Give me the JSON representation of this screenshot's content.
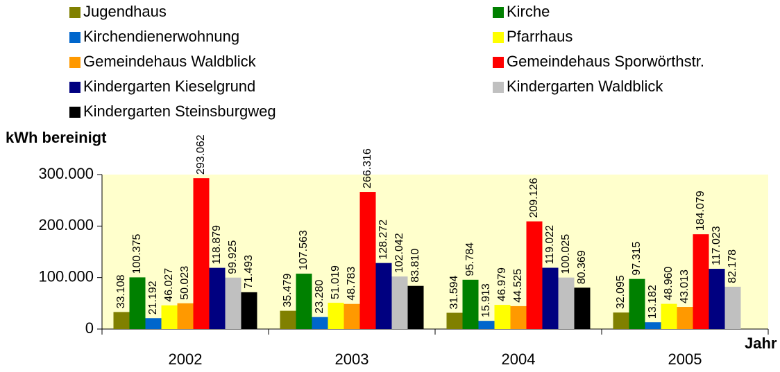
{
  "chart_data": {
    "type": "bar",
    "y_label": "kWh bereinigt",
    "x_label": "Jahr",
    "categories": [
      "2002",
      "2003",
      "2004",
      "2005"
    ],
    "series": [
      {
        "name": "Jugendhaus",
        "color": "#808000",
        "values": [
          33108,
          35479,
          31594,
          32095
        ],
        "value_labels": [
          "33.108",
          "35.479",
          "31.594",
          "32.095"
        ]
      },
      {
        "name": "Kirche",
        "color": "#008000",
        "values": [
          100375,
          107563,
          95784,
          97315
        ],
        "value_labels": [
          "100.375",
          "107.563",
          "95.784",
          "97.315"
        ]
      },
      {
        "name": "Kirchendienerwohnung",
        "color": "#0066cc",
        "values": [
          21192,
          23280,
          15913,
          13182
        ],
        "value_labels": [
          "21.192",
          "23.280",
          "15.913",
          "13.182"
        ]
      },
      {
        "name": "Pfarrhaus",
        "color": "#ffff00",
        "values": [
          46027,
          51019,
          46979,
          48960
        ],
        "value_labels": [
          "46.027",
          "51.019",
          "46.979",
          "48.960"
        ]
      },
      {
        "name": "Gemeindehaus Waldblick",
        "color": "#ff9900",
        "values": [
          50023,
          48783,
          44525,
          43013
        ],
        "value_labels": [
          "50.023",
          "48.783",
          "44.525",
          "43.013"
        ]
      },
      {
        "name": "Gemeindehaus Sporwörthstr.",
        "color": "#ff0000",
        "values": [
          293062,
          266316,
          209126,
          184079
        ],
        "value_labels": [
          "293.062",
          "266.316",
          "209.126",
          "184.079"
        ]
      },
      {
        "name": "Kindergarten Kieselgrund",
        "color": "#000080",
        "values": [
          118879,
          128272,
          119022,
          117023
        ],
        "value_labels": [
          "118.879",
          "128.272",
          "119.022",
          "117.023"
        ]
      },
      {
        "name": "Kindergarten Waldblick",
        "color": "#c0c0c0",
        "values": [
          99925,
          102042,
          100025,
          82178
        ],
        "value_labels": [
          "99.925",
          "102.042",
          "100.025",
          "82.178"
        ]
      },
      {
        "name": "Kindergarten Steinsburgweg",
        "color": "#000000",
        "values": [
          71493,
          83810,
          80369,
          null
        ],
        "value_labels": [
          "71.493",
          "83.810",
          "80.369",
          null
        ]
      }
    ],
    "ylim": [
      0,
      300000
    ],
    "yticks": [
      0,
      {
        "value": 100000,
        "label": "100.000"
      },
      {
        "value": 200000,
        "label": "200.000"
      },
      {
        "value": 300000,
        "label": "300.000"
      }
    ],
    "plot_background": "#ffffcc"
  }
}
